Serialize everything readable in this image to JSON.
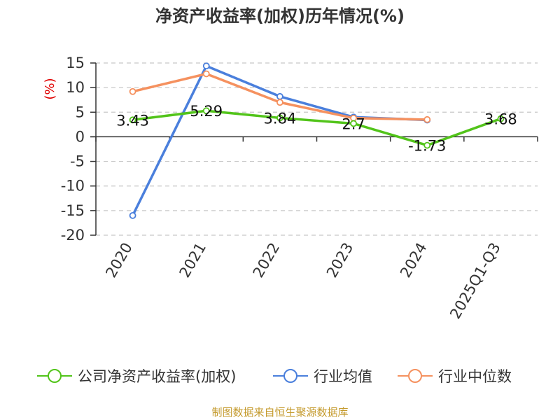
{
  "chart_data": {
    "type": "line",
    "title": "净资产收益率(加权)历年情况(%)",
    "ylabel": "(%)",
    "xlabel": "",
    "categories": [
      "2020",
      "2021",
      "2022",
      "2023",
      "2024",
      "2025Q1-Q3"
    ],
    "ylim": [
      -20,
      15
    ],
    "yticks": [
      15,
      10,
      5,
      0,
      -5,
      -10,
      -15,
      -20
    ],
    "grid": true,
    "legend_position": "bottom",
    "series": [
      {
        "name": "公司净资产收益率(加权)",
        "color": "#52c41a",
        "values": [
          3.43,
          5.29,
          3.84,
          2.7,
          -1.73,
          3.68
        ],
        "labels": [
          "3.43",
          "5.29",
          "3.84",
          "2.7",
          "-1.73",
          "3.68"
        ]
      },
      {
        "name": "行业均值",
        "color": "#4a7fdc",
        "values": [
          -16.0,
          14.4,
          8.2,
          4.0,
          3.4,
          null
        ]
      },
      {
        "name": "行业中位数",
        "color": "#f5915f",
        "values": [
          9.2,
          12.8,
          7.0,
          3.8,
          3.5,
          null
        ]
      }
    ]
  },
  "footer": {
    "source": "制图数据来自恒生聚源数据库"
  }
}
